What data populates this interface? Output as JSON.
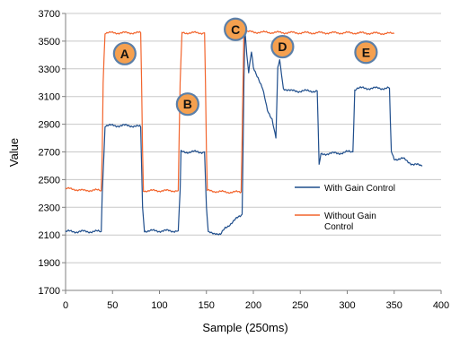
{
  "chart_data": {
    "type": "line",
    "xlabel": "Sample (250ms)",
    "ylabel": "Value",
    "xlim": [
      0,
      400
    ],
    "ylim": [
      1700,
      3700
    ],
    "xticks": [
      "0",
      "50",
      "100",
      "150",
      "200",
      "250",
      "300",
      "350",
      "400"
    ],
    "yticks": [
      "1700",
      "1900",
      "2100",
      "2300",
      "2500",
      "2700",
      "2900",
      "3100",
      "3300",
      "3500",
      "3700"
    ],
    "grid": "horizontal",
    "legend_position": "right",
    "series": [
      {
        "name": "With Gain Control",
        "color": "#1F4E8C",
        "x": [
          0,
          38,
          39,
          41,
          42,
          60,
          70,
          80,
          81,
          82,
          84,
          120,
          122,
          123,
          125,
          140,
          148,
          149,
          150,
          152,
          160,
          165,
          170,
          180,
          188,
          189,
          190,
          191,
          192,
          193,
          195,
          198,
          200,
          205,
          210,
          215,
          220,
          224,
          225,
          226,
          228,
          232,
          240,
          250,
          260,
          268,
          269,
          270,
          272,
          280,
          290,
          300,
          306,
          307,
          308,
          310,
          320,
          330,
          340,
          345,
          346,
          347,
          350,
          360,
          370,
          380
        ],
        "y": [
          2125,
          2125,
          2400,
          2700,
          2890,
          2890,
          2890,
          2880,
          2600,
          2300,
          2130,
          2130,
          2420,
          2700,
          2700,
          2700,
          2700,
          2500,
          2300,
          2115,
          2115,
          2100,
          2150,
          2205,
          2250,
          2700,
          3200,
          3580,
          3500,
          3400,
          3270,
          3420,
          3310,
          3240,
          3150,
          3000,
          2940,
          2800,
          3040,
          3300,
          3360,
          3160,
          3140,
          3140,
          3140,
          3140,
          2900,
          2600,
          2680,
          2690,
          2690,
          2700,
          2700,
          2900,
          3150,
          3160,
          3160,
          3160,
          3160,
          3160,
          2900,
          2700,
          2650,
          2650,
          2610,
          2600
        ]
      },
      {
        "name": "Without Gain Control",
        "color": "#F2642C",
        "x": [
          0,
          10,
          20,
          30,
          38,
          39,
          40,
          42,
          60,
          80,
          81,
          82,
          83,
          100,
          120,
          121,
          122,
          124,
          140,
          148,
          149,
          150,
          151,
          170,
          187,
          188,
          189,
          190,
          200,
          250,
          300,
          350
        ],
        "y": [
          2435,
          2430,
          2420,
          2425,
          2420,
          2700,
          3200,
          3560,
          3560,
          3560,
          3200,
          2700,
          2420,
          2420,
          2420,
          2800,
          3200,
          3560,
          3560,
          3560,
          3200,
          2700,
          2420,
          2410,
          2410,
          2800,
          3200,
          3570,
          3565,
          3560,
          3560,
          3555
        ]
      }
    ],
    "annotations": [
      {
        "label": "A",
        "x": 63,
        "y": 3410
      },
      {
        "label": "B",
        "x": 130,
        "y": 3045
      },
      {
        "label": "C",
        "x": 181,
        "y": 3585
      },
      {
        "label": "D",
        "x": 231,
        "y": 3460
      },
      {
        "label": "E",
        "x": 320,
        "y": 3420
      }
    ],
    "annotation_style": {
      "fill": "#F5A04F",
      "stroke": "#5B7FA8"
    }
  }
}
